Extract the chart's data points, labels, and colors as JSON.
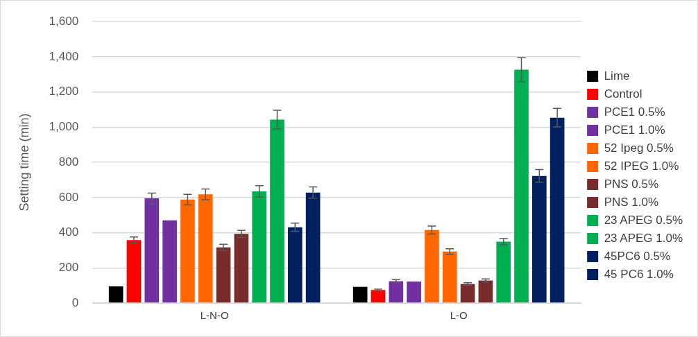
{
  "chart_data": {
    "type": "bar",
    "ylabel": "Setting time (min)",
    "categories": [
      "L-N-O",
      "L-O"
    ],
    "series": [
      {
        "name": "Lime",
        "color": "#000000",
        "values": [
          95,
          92
        ]
      },
      {
        "name": "Control",
        "color": "#ff0000",
        "values": [
          358,
          74
        ],
        "errors": [
          18,
          5
        ]
      },
      {
        "name": "PCE1 0.5%",
        "color": "#7030a0",
        "values": [
          595,
          124
        ],
        "errors": [
          30,
          9
        ]
      },
      {
        "name": "PCE1 1.0%",
        "color": "#7030a0",
        "values": [
          470,
          122
        ]
      },
      {
        "name": "52 Ipeg 0.5%",
        "color": "#ff6600",
        "values": [
          588,
          415
        ],
        "errors": [
          30,
          23
        ]
      },
      {
        "name": "52 IPEG 1.0%",
        "color": "#ff6600",
        "values": [
          618,
          293
        ],
        "errors": [
          31,
          16
        ]
      },
      {
        "name": "PNS 0.5%",
        "color": "#772b2b",
        "values": [
          316,
          108
        ],
        "errors": [
          18,
          7
        ]
      },
      {
        "name": "PNS 1.0%",
        "color": "#772b2b",
        "values": [
          393,
          128
        ],
        "errors": [
          20,
          9
        ]
      },
      {
        "name": "23 APEG 0.5%",
        "color": "#00b050",
        "values": [
          635,
          349
        ],
        "errors": [
          32,
          18
        ]
      },
      {
        "name": "23 APEG 1.0%",
        "color": "#00b050",
        "values": [
          1043,
          1327
        ],
        "errors": [
          53,
          68
        ]
      },
      {
        "name": "45PC6 0.5%",
        "color": "#002060",
        "values": [
          431,
          723
        ],
        "errors": [
          23,
          36
        ]
      },
      {
        "name": "45 PC6 1.0%",
        "color": "#002060",
        "values": [
          628,
          1054
        ],
        "errors": [
          32,
          53
        ]
      }
    ],
    "ylim": [
      0,
      1600
    ],
    "yticks": [
      0,
      200,
      400,
      600,
      800,
      {
        "value": 1000,
        "label": "1,000"
      },
      {
        "value": 1200,
        "label": "1,200"
      },
      {
        "value": 1400,
        "label": "1,400"
      },
      {
        "value": 1600,
        "label": "1,600"
      }
    ],
    "grid": "y",
    "legend": "right"
  }
}
